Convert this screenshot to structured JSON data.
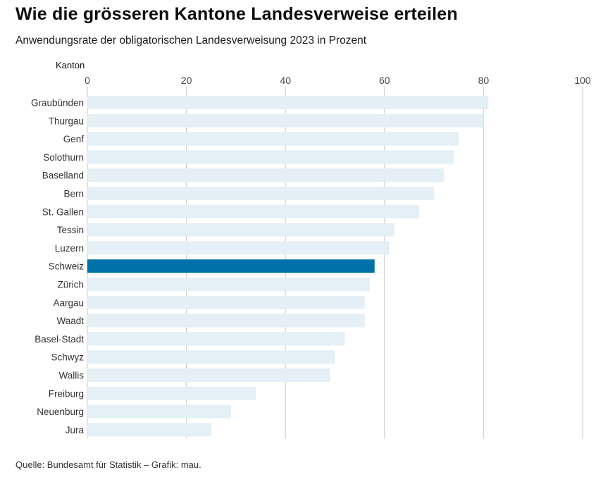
{
  "title": "Wie die grösseren Kantone Landesverweise erteilen",
  "subtitle": "Anwendungsrate der obligatorischen Landesverweisung 2023 in Prozent",
  "source": "Quelle: Bundesamt für Statistik – Grafik: mau.",
  "colors": {
    "bar": "#e4eff6",
    "highlight": "#0072a9",
    "grid": "#d0d0d0",
    "text": "#333333"
  },
  "chart_data": {
    "type": "bar",
    "orientation": "horizontal",
    "title": "Wie die grösseren Kantone Landesverweise erteilen",
    "subtitle": "Anwendungsrate der obligatorischen Landesverweisung 2023 in Prozent",
    "category_axis_label": "Kanton",
    "xlim": [
      0,
      100
    ],
    "ticks": [
      0,
      20,
      40,
      60,
      80,
      100
    ],
    "highlight": "Schweiz",
    "categories": [
      "Graubünden",
      "Thurgau",
      "Genf",
      "Solothurn",
      "Baselland",
      "Bern",
      "St. Gallen",
      "Tessin",
      "Luzern",
      "Schweiz",
      "Zürich",
      "Aargau",
      "Waadt",
      "Basel-Stadt",
      "Schwyz",
      "Wallis",
      "Freiburg",
      "Neuenburg",
      "Jura"
    ],
    "values": [
      81,
      80,
      75,
      74,
      72,
      70,
      67,
      62,
      61,
      58,
      57,
      56,
      56,
      52,
      50,
      49,
      34,
      29,
      25
    ]
  }
}
